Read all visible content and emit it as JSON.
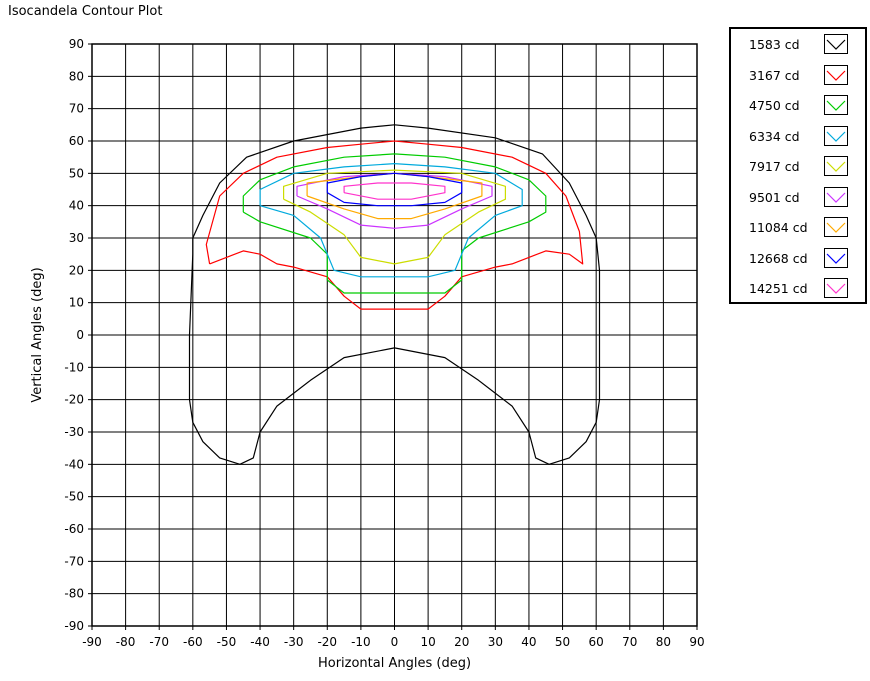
{
  "chart_data": {
    "type": "line",
    "title": "Isocandela Contour Plot",
    "xlabel": "Horizontal Angles (deg)",
    "ylabel": "Vertical Angles (deg)",
    "xlim": [
      -90,
      90
    ],
    "ylim": [
      -90,
      90
    ],
    "xticks": [
      -90,
      -80,
      -70,
      -60,
      -50,
      -40,
      -30,
      -20,
      -10,
      0,
      10,
      20,
      30,
      40,
      50,
      60,
      70,
      80,
      90
    ],
    "yticks": [
      -90,
      -80,
      -70,
      -60,
      -50,
      -40,
      -30,
      -20,
      -10,
      0,
      10,
      20,
      30,
      40,
      50,
      60,
      70,
      80,
      90
    ],
    "grid": true,
    "legend_position": "right",
    "series": [
      {
        "name": "1583 cd",
        "color": "#000000",
        "outer": [
          [
            -60,
            25
          ],
          [
            -60,
            30
          ],
          [
            -57,
            37
          ],
          [
            -52,
            47
          ],
          [
            -44,
            55
          ],
          [
            -30,
            60
          ],
          [
            -10,
            64
          ],
          [
            0,
            65
          ],
          [
            10,
            64
          ],
          [
            30,
            61
          ],
          [
            44,
            56
          ],
          [
            52,
            47
          ],
          [
            57,
            37
          ],
          [
            60,
            30
          ],
          [
            61,
            20
          ],
          [
            61,
            0
          ],
          [
            61,
            -20
          ],
          [
            60,
            -27
          ],
          [
            57,
            -33
          ],
          [
            52,
            -38
          ],
          [
            46,
            -40
          ],
          [
            42,
            -38
          ],
          [
            40,
            -30
          ],
          [
            35,
            -22
          ],
          [
            25,
            -14
          ],
          [
            15,
            -7
          ],
          [
            0,
            -4
          ],
          [
            -15,
            -7
          ],
          [
            -25,
            -14
          ],
          [
            -35,
            -22
          ],
          [
            -40,
            -30
          ],
          [
            -42,
            -38
          ],
          [
            -46,
            -40
          ],
          [
            -52,
            -38
          ],
          [
            -57,
            -33
          ],
          [
            -60,
            -27
          ],
          [
            -61,
            -20
          ],
          [
            -61,
            0
          ],
          [
            -60,
            25
          ]
        ]
      },
      {
        "name": "3167 cd",
        "color": "#ff0000",
        "outer": [
          [
            -55,
            22
          ],
          [
            -56,
            28
          ],
          [
            -52,
            43
          ],
          [
            -45,
            50
          ],
          [
            -35,
            55
          ],
          [
            -20,
            58
          ],
          [
            -10,
            59
          ],
          [
            0,
            60
          ],
          [
            10,
            59
          ],
          [
            20,
            58
          ],
          [
            35,
            55
          ],
          [
            45,
            50
          ],
          [
            51,
            43
          ],
          [
            55,
            32
          ],
          [
            56,
            22
          ],
          [
            52,
            25
          ],
          [
            45,
            26
          ],
          [
            40,
            24
          ],
          [
            35,
            22
          ],
          [
            30,
            21
          ],
          [
            20,
            18
          ],
          [
            15,
            12
          ],
          [
            10,
            8
          ],
          [
            0,
            8
          ],
          [
            -10,
            8
          ],
          [
            -15,
            12
          ],
          [
            -20,
            18
          ],
          [
            -30,
            21
          ],
          [
            -35,
            22
          ],
          [
            -40,
            25
          ],
          [
            -45,
            26
          ],
          [
            -50,
            24
          ],
          [
            -55,
            22
          ]
        ]
      },
      {
        "name": "4750 cd",
        "color": "#00cc00",
        "outer": [
          [
            -45,
            38
          ],
          [
            -45,
            43
          ],
          [
            -40,
            48
          ],
          [
            -30,
            52
          ],
          [
            -15,
            55
          ],
          [
            0,
            56
          ],
          [
            15,
            55
          ],
          [
            30,
            52
          ],
          [
            40,
            48
          ],
          [
            45,
            43
          ],
          [
            45,
            38
          ],
          [
            40,
            35
          ],
          [
            25,
            30
          ],
          [
            20,
            26
          ],
          [
            20,
            17
          ],
          [
            15,
            13
          ],
          [
            0,
            13
          ],
          [
            -15,
            13
          ],
          [
            -20,
            17
          ],
          [
            -20,
            25
          ],
          [
            -25,
            30
          ],
          [
            -40,
            35
          ],
          [
            -45,
            38
          ]
        ]
      },
      {
        "name": "6334 cd",
        "color": "#00aadd",
        "outer": [
          [
            -40,
            40
          ],
          [
            -40,
            45
          ],
          [
            -30,
            50
          ],
          [
            -15,
            52
          ],
          [
            0,
            53
          ],
          [
            15,
            52
          ],
          [
            30,
            50
          ],
          [
            38,
            45
          ],
          [
            38,
            40
          ],
          [
            30,
            37
          ],
          [
            22,
            30
          ],
          [
            18,
            20
          ],
          [
            10,
            18
          ],
          [
            0,
            18
          ],
          [
            -10,
            18
          ],
          [
            -18,
            20
          ],
          [
            -22,
            30
          ],
          [
            -30,
            37
          ],
          [
            -40,
            40
          ]
        ]
      },
      {
        "name": "7917 cd",
        "color": "#ccdd00",
        "outer": [
          [
            -33,
            42
          ],
          [
            -33,
            46
          ],
          [
            -20,
            50
          ],
          [
            0,
            51
          ],
          [
            20,
            50
          ],
          [
            33,
            46
          ],
          [
            33,
            42
          ],
          [
            25,
            38
          ],
          [
            15,
            31
          ],
          [
            10,
            24
          ],
          [
            0,
            22
          ],
          [
            -10,
            24
          ],
          [
            -15,
            31
          ],
          [
            -25,
            38
          ],
          [
            -33,
            42
          ]
        ]
      },
      {
        "name": "9501 cd",
        "color": "#cc33ff",
        "outer": [
          [
            -29,
            43
          ],
          [
            -29,
            46
          ],
          [
            -15,
            49
          ],
          [
            0,
            50
          ],
          [
            15,
            49
          ],
          [
            29,
            46
          ],
          [
            29,
            43
          ],
          [
            20,
            39
          ],
          [
            10,
            34
          ],
          [
            0,
            33
          ],
          [
            -10,
            34
          ],
          [
            -20,
            39
          ],
          [
            -29,
            43
          ]
        ]
      },
      {
        "name": "11084 cd",
        "color": "#ffaa00",
        "outer": [
          [
            -26,
            43
          ],
          [
            -26,
            47
          ],
          [
            -10,
            49
          ],
          [
            0,
            50
          ],
          [
            10,
            49
          ],
          [
            26,
            47
          ],
          [
            26,
            43
          ],
          [
            15,
            39
          ],
          [
            5,
            36
          ],
          [
            -5,
            36
          ],
          [
            -15,
            39
          ],
          [
            -26,
            43
          ]
        ]
      },
      {
        "name": "12668 cd",
        "color": "#0000ff",
        "outer": [
          [
            -20,
            44
          ],
          [
            -20,
            47
          ],
          [
            -10,
            49
          ],
          [
            0,
            50
          ],
          [
            10,
            49
          ],
          [
            20,
            47
          ],
          [
            20,
            44
          ],
          [
            15,
            41
          ],
          [
            5,
            40
          ],
          [
            -5,
            40
          ],
          [
            -15,
            41
          ],
          [
            -20,
            44
          ]
        ]
      },
      {
        "name": "14251 cd",
        "color": "#ff33cc",
        "outer": [
          [
            -15,
            44
          ],
          [
            -15,
            46
          ],
          [
            -5,
            47
          ],
          [
            5,
            47
          ],
          [
            15,
            46
          ],
          [
            15,
            44
          ],
          [
            5,
            42
          ],
          [
            -5,
            42
          ],
          [
            -15,
            44
          ]
        ]
      }
    ]
  }
}
